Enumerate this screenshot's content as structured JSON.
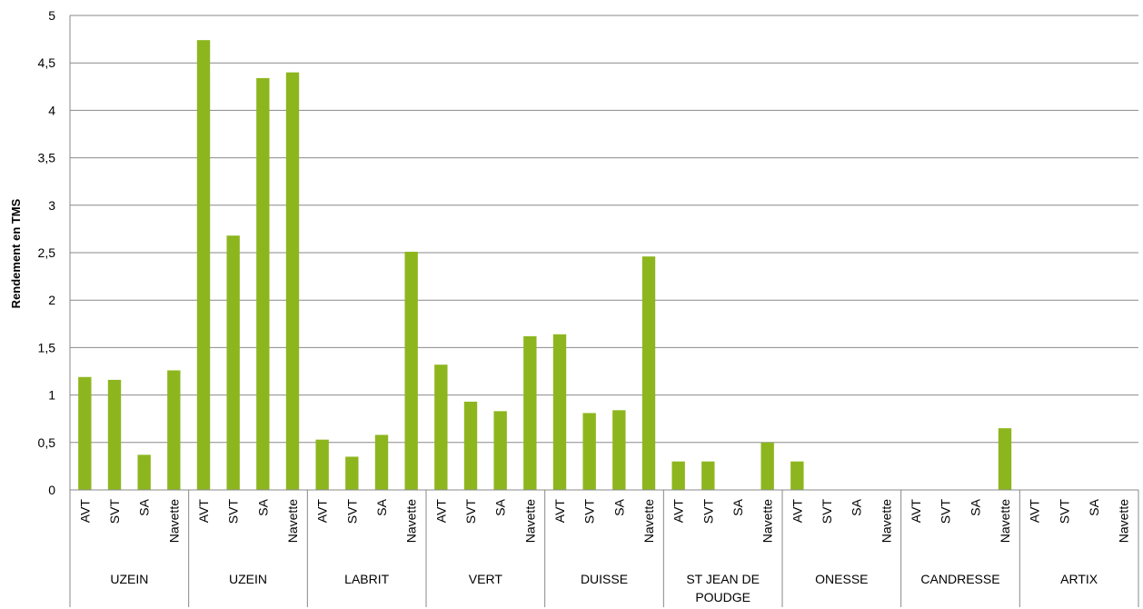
{
  "chart_data": {
    "type": "bar",
    "ylabel": "Rendement en TMS",
    "xlabel": "",
    "title": "",
    "ylim": [
      0,
      5
    ],
    "y_ticks": [
      "0",
      "0,5",
      "1",
      "1,5",
      "2",
      "2,5",
      "3",
      "3,5",
      "4",
      "4,5",
      "5"
    ],
    "grid": true,
    "bar_color": "#8db61e",
    "groups": [
      {
        "label": "UZEIN",
        "categories": [
          "AVT",
          "SVT",
          "SA",
          "Navette"
        ],
        "values": [
          1.19,
          1.16,
          0.37,
          1.26
        ]
      },
      {
        "label": "UZEIN",
        "categories": [
          "AVT",
          "SVT",
          "SA",
          "Navette"
        ],
        "values": [
          4.74,
          2.68,
          4.34,
          4.4
        ]
      },
      {
        "label": "LABRIT",
        "categories": [
          "AVT",
          "SVT",
          "SA",
          "Navette"
        ],
        "values": [
          0.53,
          0.35,
          0.58,
          2.51
        ]
      },
      {
        "label": "VERT",
        "categories": [
          "AVT",
          "SVT",
          "SA",
          "Navette"
        ],
        "values": [
          1.32,
          0.93,
          0.83,
          1.62
        ]
      },
      {
        "label": "DUISSE",
        "categories": [
          "AVT",
          "SVT",
          "SA",
          "Navette"
        ],
        "values": [
          1.64,
          0.81,
          0.84,
          2.46
        ]
      },
      {
        "label": "ST JEAN DE POUDGE",
        "categories": [
          "AVT",
          "SVT",
          "SA",
          "Navette"
        ],
        "values": [
          0.3,
          0.3,
          0,
          0.5
        ]
      },
      {
        "label": "ONESSE",
        "categories": [
          "AVT",
          "SVT",
          "SA",
          "Navette"
        ],
        "values": [
          0.3,
          0,
          0,
          0
        ]
      },
      {
        "label": "CANDRESSE",
        "categories": [
          "AVT",
          "SVT",
          "SA",
          "Navette"
        ],
        "values": [
          0,
          0,
          0,
          0.65
        ]
      },
      {
        "label": "ARTIX",
        "categories": [
          "AVT",
          "SVT",
          "SA",
          "Navette"
        ],
        "values": [
          0,
          0,
          0,
          0
        ]
      }
    ]
  }
}
